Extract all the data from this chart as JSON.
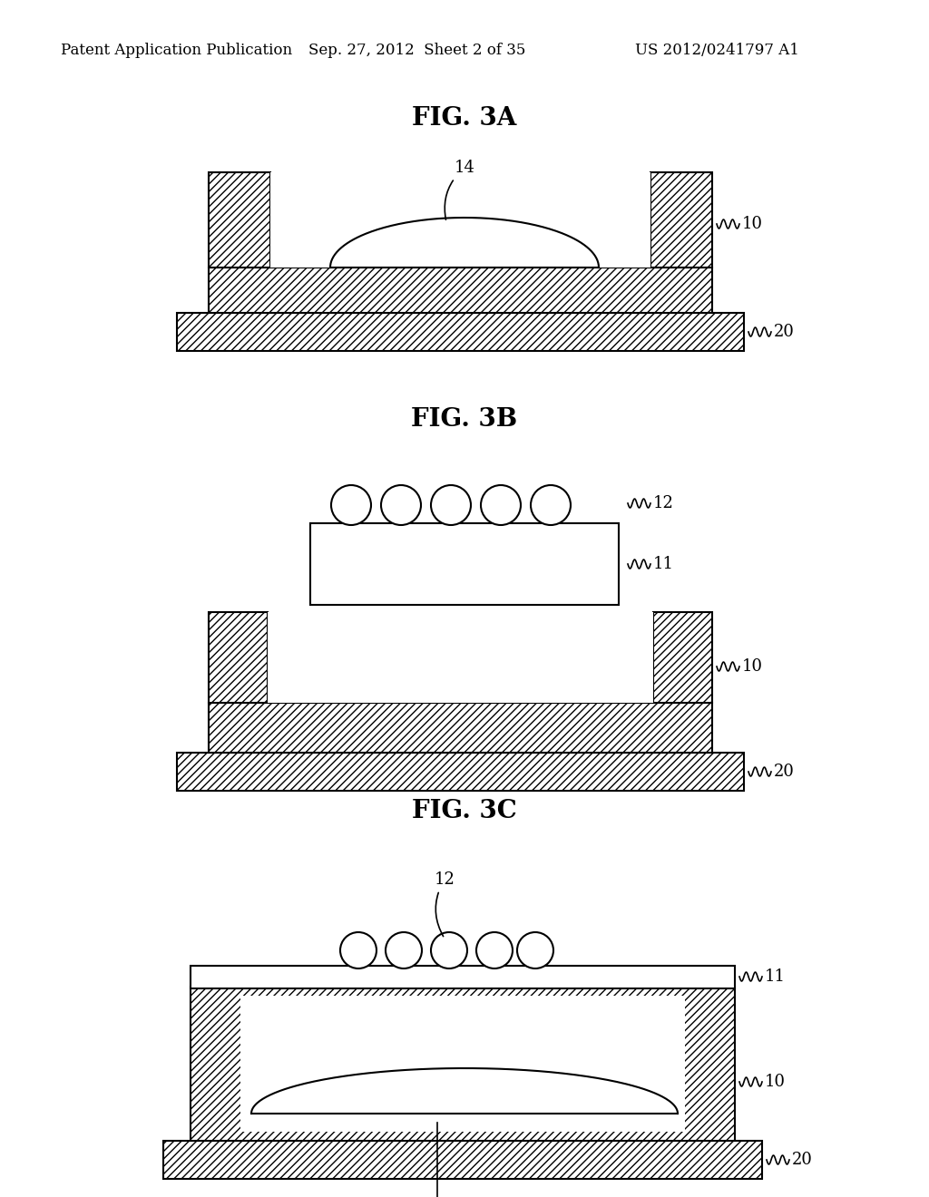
{
  "bg_color": "#ffffff",
  "header_text": "Patent Application Publication",
  "header_date": "Sep. 27, 2012  Sheet 2 of 35",
  "header_patent": "US 2012/0241797 A1",
  "fig3a_label": "FIG. 3A",
  "fig3b_label": "FIG. 3B",
  "fig3c_label": "FIG. 3C",
  "lbl_10": "10",
  "lbl_11": "11",
  "lbl_12": "12",
  "lbl_14": "14",
  "lbl_20": "20"
}
